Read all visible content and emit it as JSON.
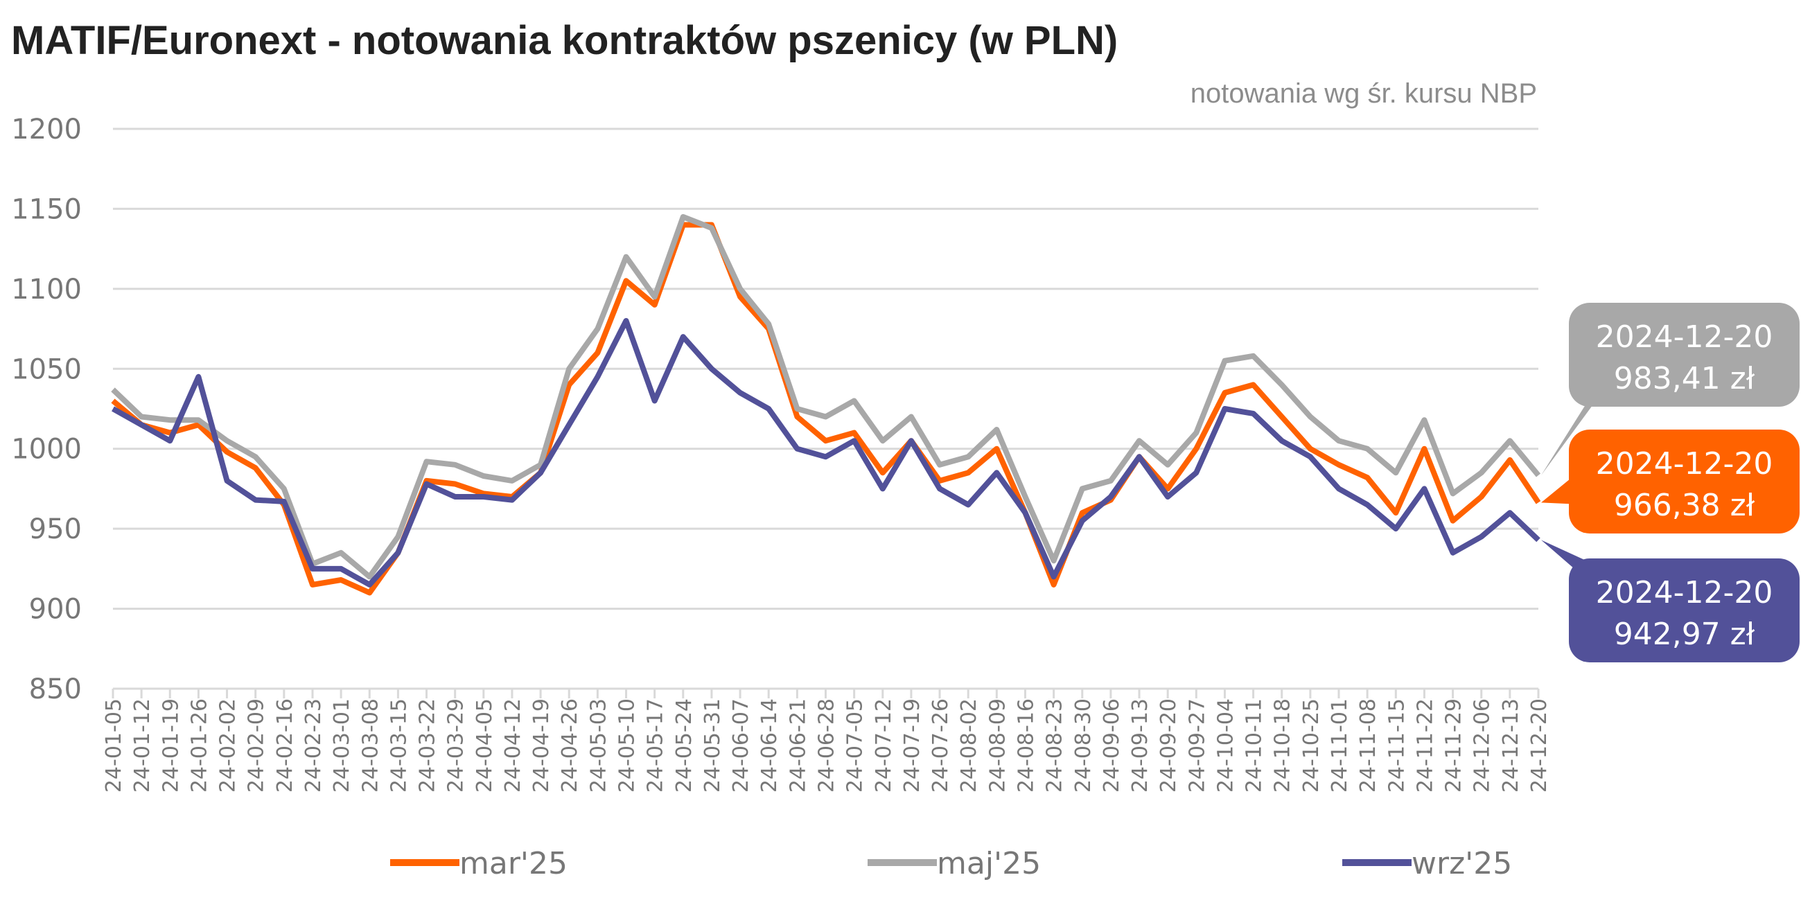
{
  "chart_data": {
    "type": "line",
    "title": "MATIF/Euronext - notowania kontraktów pszenicy (w PLN)",
    "subtitle": "notowania wg śr. kursu NBP",
    "xlabel": "",
    "ylabel": "",
    "ylim": [
      850,
      1200
    ],
    "yticks": [
      "850",
      "900",
      "950",
      "1000",
      "1050",
      "1100",
      "1150",
      "1200"
    ],
    "ytick_values": [
      850,
      900,
      950,
      1000,
      1050,
      1100,
      1150,
      1200
    ],
    "grid": true,
    "legend_position": "bottom",
    "x": [
      "24-01-05",
      "24-01-12",
      "24-01-19",
      "24-01-26",
      "24-02-02",
      "24-02-09",
      "24-02-16",
      "24-02-23",
      "24-03-01",
      "24-03-08",
      "24-03-15",
      "24-03-22",
      "24-03-29",
      "24-04-05",
      "24-04-12",
      "24-04-19",
      "24-04-26",
      "24-05-03",
      "24-05-10",
      "24-05-17",
      "24-05-24",
      "24-05-31",
      "24-06-07",
      "24-06-14",
      "24-06-21",
      "24-06-28",
      "24-07-05",
      "24-07-12",
      "24-07-19",
      "24-07-26",
      "24-08-02",
      "24-08-09",
      "24-08-16",
      "24-08-23",
      "24-08-30",
      "24-09-06",
      "24-09-13",
      "24-09-20",
      "24-09-27",
      "24-10-04",
      "24-10-11",
      "24-10-18",
      "24-10-25",
      "24-11-01",
      "24-11-08",
      "24-11-15",
      "24-11-22",
      "24-11-29",
      "24-12-06",
      "24-12-13",
      "24-12-20"
    ],
    "series": [
      {
        "name": "mar'25",
        "color": "#ff6200",
        "values": [
          1030,
          1015,
          1010,
          1015,
          998,
          988,
          965,
          915,
          918,
          910,
          935,
          980,
          978,
          972,
          970,
          985,
          1040,
          1060,
          1105,
          1090,
          1140,
          1140,
          1095,
          1075,
          1020,
          1005,
          1010,
          985,
          1005,
          980,
          985,
          1000,
          960,
          915,
          960,
          968,
          995,
          975,
          1000,
          1035,
          1040,
          1020,
          1000,
          990,
          982,
          960,
          1000,
          955,
          970,
          993,
          966.38
        ]
      },
      {
        "name": "maj'25",
        "color": "#a8a8a8",
        "values": [
          1037,
          1020,
          1018,
          1018,
          1005,
          995,
          975,
          928,
          935,
          920,
          945,
          992,
          990,
          983,
          980,
          990,
          1050,
          1075,
          1120,
          1095,
          1145,
          1138,
          1100,
          1078,
          1025,
          1020,
          1030,
          1005,
          1020,
          990,
          995,
          1012,
          970,
          930,
          975,
          980,
          1005,
          990,
          1010,
          1055,
          1058,
          1040,
          1020,
          1005,
          1000,
          985,
          1018,
          972,
          985,
          1005,
          983.41
        ]
      },
      {
        "name": "wrz'25",
        "color": "#525199",
        "values": [
          1025,
          1015,
          1005,
          1045,
          980,
          968,
          967,
          925,
          925,
          915,
          935,
          978,
          970,
          970,
          968,
          985,
          1015,
          1045,
          1080,
          1030,
          1070,
          1050,
          1035,
          1025,
          1000,
          995,
          1005,
          975,
          1005,
          975,
          965,
          985,
          960,
          920,
          955,
          970,
          995,
          970,
          985,
          1025,
          1022,
          1005,
          995,
          975,
          965,
          950,
          975,
          935,
          945,
          960,
          942.97
        ]
      }
    ],
    "annotations": [
      {
        "series": "maj'25",
        "date": "2024-12-20",
        "value": "983,41 zł",
        "color": "#a8a8a8"
      },
      {
        "series": "mar'25",
        "date": "2024-12-20",
        "value": "966,38 zł",
        "color": "#ff6200"
      },
      {
        "series": "wrz'25",
        "date": "2024-12-20",
        "value": "942,97 zł",
        "color": "#525199"
      }
    ]
  }
}
